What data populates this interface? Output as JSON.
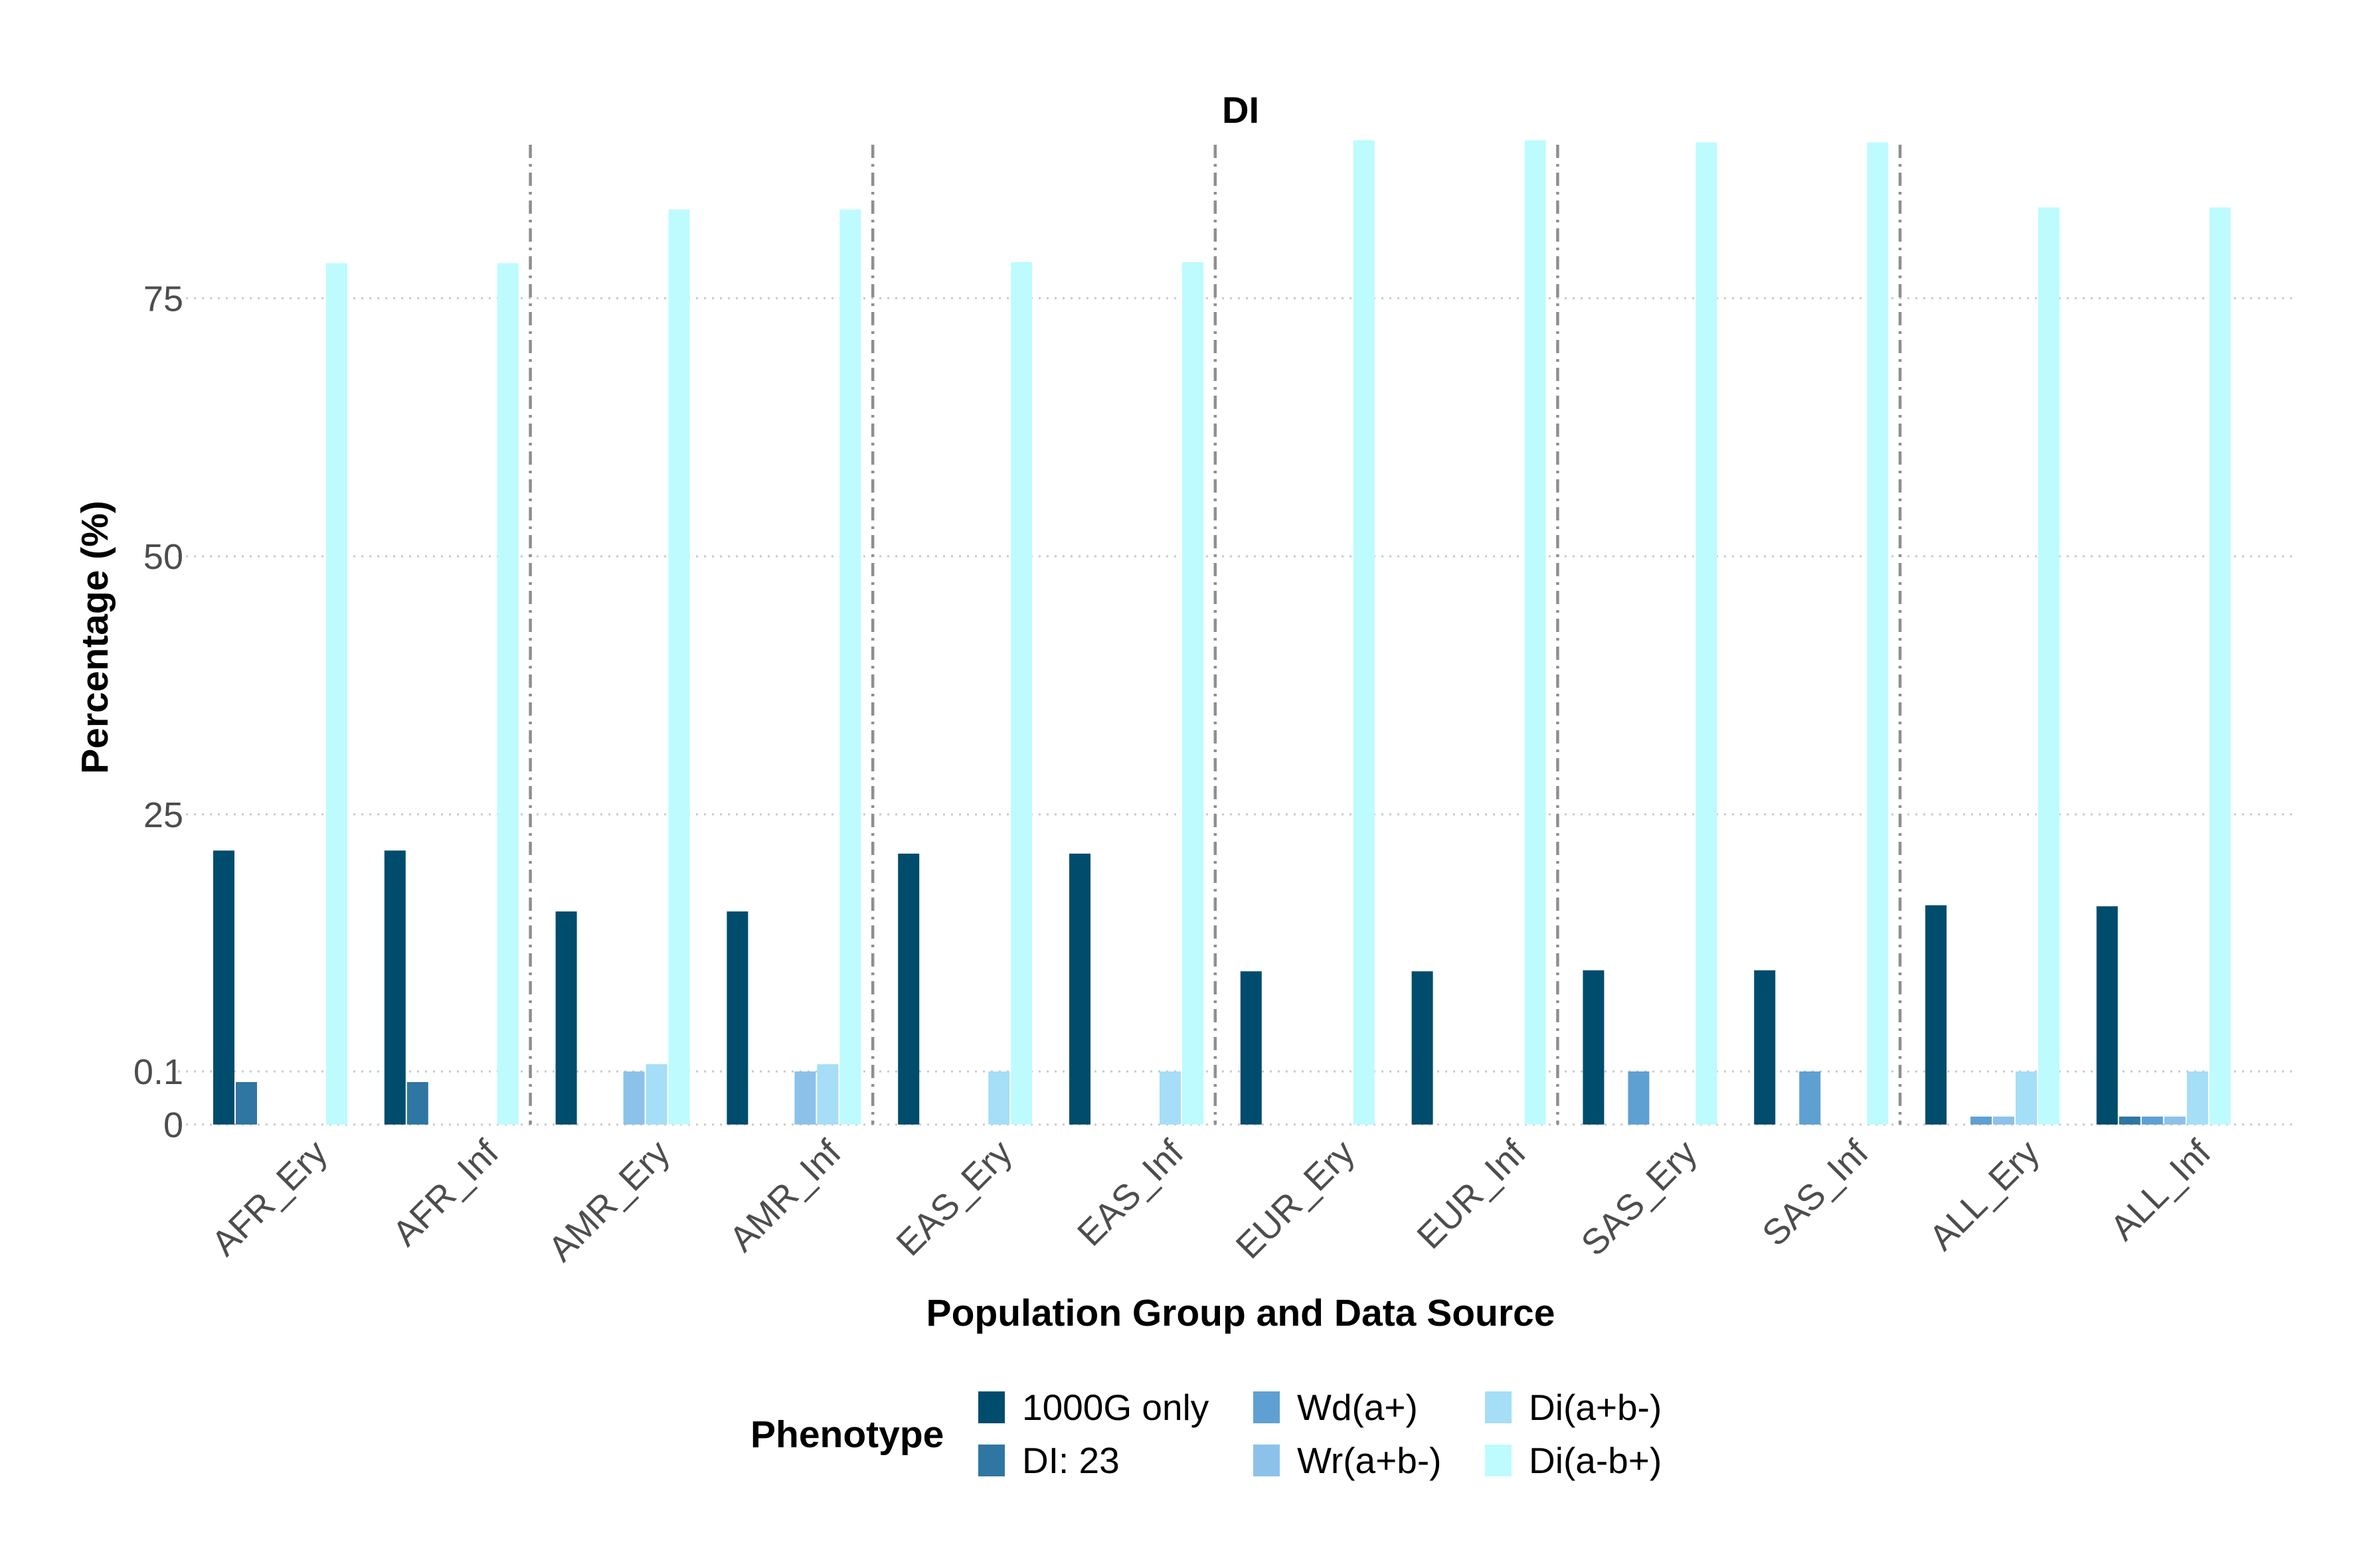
{
  "chart_data": {
    "type": "bar",
    "title": "DI",
    "xlabel": "Population Group and Data Source",
    "ylabel": "Percentage (%)",
    "legend_title": "Phenotype",
    "legend_position": "bottom",
    "grid": true,
    "y_scale": "piecewise (0 to 0.1 compressed, 0.1 to 95 linear)",
    "ylim": [
      0,
      95
    ],
    "yticks": [
      {
        "value": 0,
        "label": "0"
      },
      {
        "value": 0.1,
        "label": "0.1"
      },
      {
        "value": 25,
        "label": "25"
      },
      {
        "value": 50,
        "label": "50"
      },
      {
        "value": 75,
        "label": "75"
      }
    ],
    "categories": [
      "AFR_Ery",
      "AFR_Inf",
      "AMR_Ery",
      "AMR_Inf",
      "EAS_Ery",
      "EAS_Inf",
      "EUR_Ery",
      "EUR_Inf",
      "SAS_Ery",
      "SAS_Inf",
      "ALL_Ery",
      "ALL_Inf"
    ],
    "series": [
      {
        "name": "1000G only",
        "color": "#004C6D",
        "values": [
          21.5,
          21.5,
          15.6,
          15.6,
          21.2,
          21.2,
          9.8,
          9.8,
          9.9,
          9.9,
          16.2,
          16.1
        ]
      },
      {
        "name": "DI: 23",
        "color": "#2F76A3",
        "values": [
          0.08,
          0.08,
          0,
          0,
          0,
          0,
          0,
          0,
          0,
          0,
          0,
          0.015
        ]
      },
      {
        "name": "Wd(a+)",
        "color": "#5FA0D2",
        "values": [
          0,
          0,
          0,
          0,
          0,
          0,
          0,
          0,
          0.1,
          0.1,
          0.015,
          0.015
        ]
      },
      {
        "name": "Wr(a+b-)",
        "color": "#8CC2EA",
        "values": [
          0,
          0,
          0.1,
          0.1,
          0,
          0,
          0,
          0,
          0,
          0,
          0.015,
          0.015
        ]
      },
      {
        "name": "Di(a+b-)",
        "color": "#A5DEF6",
        "values": [
          0,
          0,
          0.8,
          0.8,
          0.1,
          0.1,
          0,
          0,
          0,
          0,
          0.1,
          0.1
        ]
      },
      {
        "name": "Di(a-b+)",
        "color": "#BDFBFF",
        "values": [
          78.4,
          78.4,
          83.6,
          83.6,
          78.5,
          78.5,
          90.3,
          90.3,
          90.1,
          90.1,
          83.8,
          83.8
        ]
      }
    ],
    "separators_after": [
      "AFR_Inf",
      "AMR_Inf",
      "EAS_Inf",
      "EUR_Inf",
      "SAS_Inf"
    ]
  }
}
